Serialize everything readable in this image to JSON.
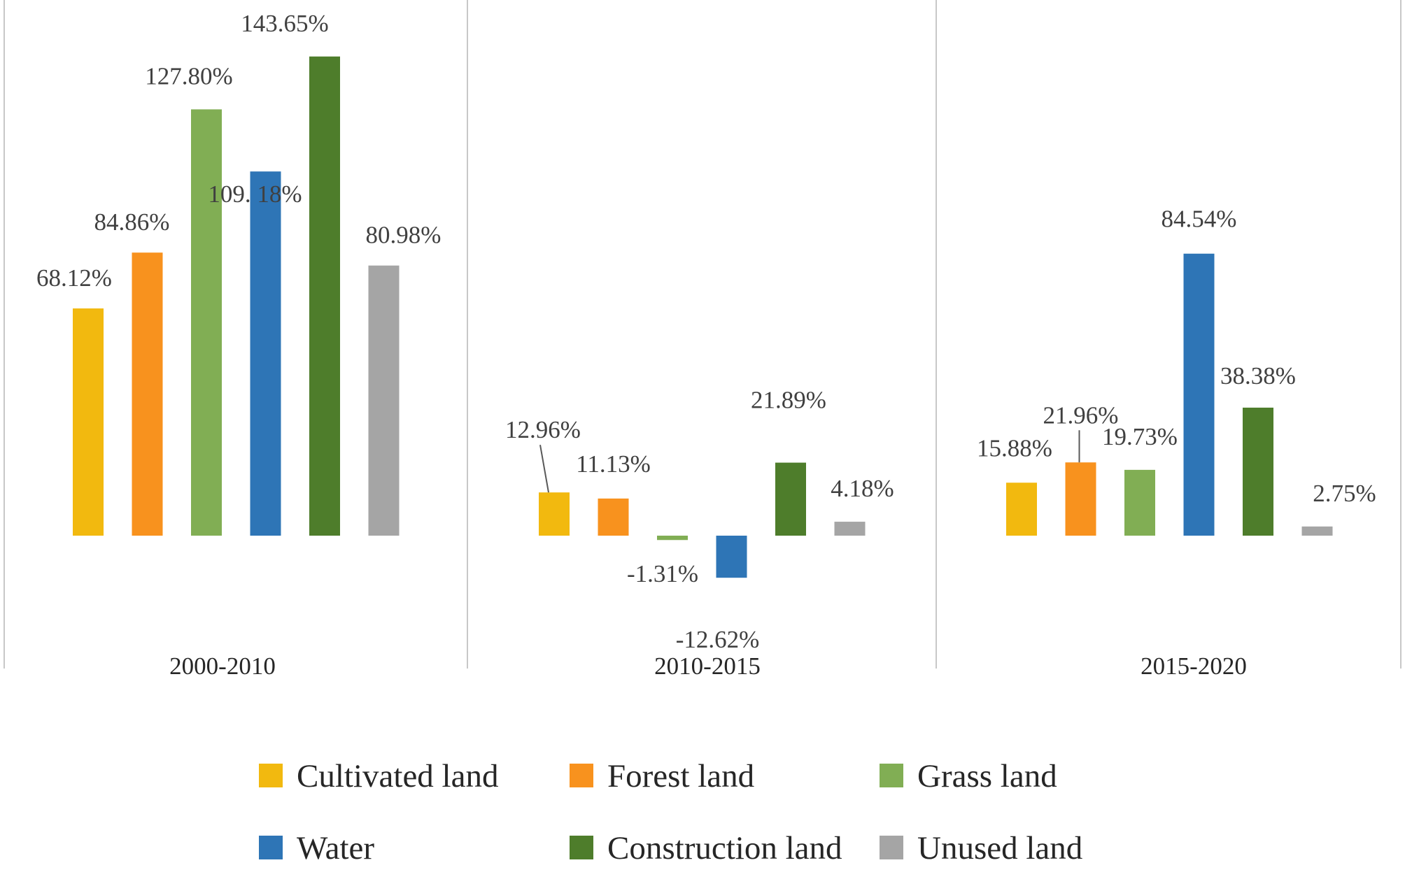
{
  "chart_data": {
    "type": "bar",
    "title": "",
    "xlabel": "",
    "ylabel": "",
    "value_unit": "%",
    "grid": false,
    "legend_position": "bottom",
    "categories": [
      "2000-2010",
      "2010-2015",
      "2015-2020"
    ],
    "series": [
      {
        "name": "Cultivated land",
        "color": "#F2B90F",
        "values": [
          68.12,
          12.96,
          15.88
        ],
        "labels": [
          "68.12%",
          "12.96%",
          "15.88%"
        ]
      },
      {
        "name": "Forest land",
        "color": "#F8921E",
        "values": [
          84.86,
          11.13,
          21.96
        ],
        "labels": [
          "84.86%",
          "11.13%",
          "21.96%"
        ]
      },
      {
        "name": "Grass land",
        "color": "#81AE54",
        "values": [
          127.8,
          -1.31,
          19.73
        ],
        "labels": [
          "127.80%",
          "-1.31%",
          "19.73%"
        ]
      },
      {
        "name": "Water",
        "color": "#2E75B6",
        "values": [
          109.18,
          -12.62,
          84.54
        ],
        "labels": [
          "109. 18%",
          "-12.62%",
          "84.54%"
        ]
      },
      {
        "name": "Construction land",
        "color": "#4E7D2B",
        "values": [
          143.65,
          21.89,
          38.38
        ],
        "labels": [
          "143.65%",
          "21.89%",
          "38.38%"
        ]
      },
      {
        "name": "Unused land",
        "color": "#A5A5A5",
        "values": [
          80.98,
          4.18,
          2.75
        ],
        "labels": [
          "80.98%",
          "4.18%",
          "2.75%"
        ]
      }
    ]
  }
}
